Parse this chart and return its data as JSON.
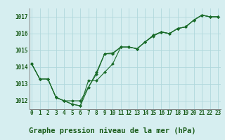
{
  "background_color": "#d6eef0",
  "grid_color": "#b0d8dc",
  "line_color": "#1a6b2a",
  "marker_color": "#1a6b2a",
  "title": "Graphe pression niveau de la mer (hPa)",
  "xlim": [
    -0.3,
    23.3
  ],
  "ylim": [
    1011.5,
    1017.5
  ],
  "yticks": [
    1012,
    1013,
    1014,
    1015,
    1016,
    1017
  ],
  "xticks": [
    0,
    1,
    2,
    3,
    4,
    5,
    6,
    7,
    8,
    9,
    10,
    11,
    12,
    13,
    14,
    15,
    16,
    17,
    18,
    19,
    20,
    21,
    22,
    23
  ],
  "series": [
    [
      1014.2,
      1013.3,
      1013.3,
      1012.2,
      1012.0,
      1011.8,
      1011.7,
      1013.2,
      1013.2,
      1013.7,
      1014.2,
      1015.2,
      1015.2,
      1015.1,
      1015.5,
      1015.9,
      1016.1,
      1016.0,
      1016.3,
      1016.4,
      1016.8,
      1017.1,
      1017.0,
      1017.0
    ],
    [
      1014.2,
      1013.3,
      1013.3,
      1012.2,
      1012.0,
      1011.8,
      1011.7,
      1012.8,
      1013.6,
      1014.8,
      1014.8,
      1015.2,
      1015.2,
      1015.1,
      1015.5,
      1015.9,
      1016.1,
      1016.0,
      1016.3,
      1016.4,
      1016.8,
      1017.1,
      1017.0,
      1017.0
    ],
    [
      1014.2,
      1013.3,
      1013.3,
      1012.2,
      1012.0,
      1012.0,
      1012.0,
      1012.8,
      1013.7,
      1014.8,
      1014.85,
      1015.2,
      1015.2,
      1015.1,
      1015.5,
      1015.85,
      1016.1,
      1016.0,
      1016.3,
      1016.4,
      1016.8,
      1017.1,
      1017.0,
      1017.0
    ]
  ],
  "title_fontsize": 7.5,
  "tick_fontsize": 5.5,
  "title_font": "monospace",
  "tick_font": "monospace"
}
